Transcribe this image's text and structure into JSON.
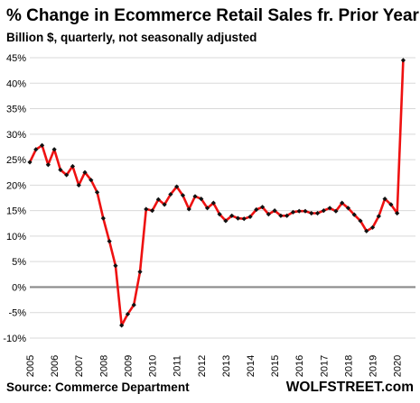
{
  "chart_data": {
    "type": "line",
    "title": "% Change in Ecommerce Retail Sales fr. Prior Year",
    "subtitle": "Billion $, quarterly, not seasonally adjusted",
    "source": "Source: Commerce Department",
    "brand": "WOLFSTREET.com",
    "ylim": [
      -10,
      45
    ],
    "y_ticks": [
      -10,
      -5,
      0,
      5,
      10,
      15,
      20,
      25,
      30,
      35,
      40,
      45
    ],
    "y_tick_labels": [
      "-10%",
      "-5%",
      "0%",
      "5%",
      "10%",
      "15%",
      "20%",
      "25%",
      "30%",
      "35%",
      "40%",
      "45%"
    ],
    "x_tick_labels": [
      "2005",
      "2006",
      "2007",
      "2008",
      "2009",
      "2010",
      "2011",
      "2012",
      "2013",
      "2014",
      "2015",
      "2016",
      "2017",
      "2018",
      "2019",
      "2020"
    ],
    "xlim": [
      2005.0,
      2020.75
    ],
    "grid": true,
    "zero_line": true,
    "line_color": "#ee1111",
    "marker_color": "#111111",
    "series": [
      {
        "x": [
          2005.0,
          2005.25,
          2005.5,
          2005.75,
          2006.0,
          2006.25,
          2006.5,
          2006.75,
          2007.0,
          2007.25,
          2007.5,
          2007.75,
          2008.0,
          2008.25,
          2008.5,
          2008.75,
          2009.0,
          2009.25,
          2009.5,
          2009.75,
          2010.0,
          2010.25,
          2010.5,
          2010.75,
          2011.0,
          2011.25,
          2011.5,
          2011.75,
          2012.0,
          2012.25,
          2012.5,
          2012.75,
          2013.0,
          2013.25,
          2013.5,
          2013.75,
          2014.0,
          2014.25,
          2014.5,
          2014.75,
          2015.0,
          2015.25,
          2015.5,
          2015.75,
          2016.0,
          2016.25,
          2016.5,
          2016.75,
          2017.0,
          2017.25,
          2017.5,
          2017.75,
          2018.0,
          2018.25,
          2018.5,
          2018.75,
          2019.0,
          2019.25,
          2019.5,
          2019.75,
          2020.0,
          2020.25
        ],
        "y": [
          24.5,
          27.0,
          27.8,
          24.0,
          27.0,
          23.0,
          22.0,
          23.7,
          20.0,
          22.5,
          21.0,
          18.6,
          13.5,
          9.0,
          4.2,
          -7.5,
          -5.3,
          -3.5,
          3.0,
          15.3,
          15.0,
          17.2,
          16.2,
          18.2,
          19.7,
          18.0,
          15.3,
          17.8,
          17.3,
          15.5,
          16.5,
          14.3,
          13.0,
          14.0,
          13.5,
          13.4,
          13.8,
          15.2,
          15.7,
          14.3,
          15.0,
          14.0,
          14.0,
          14.7,
          14.9,
          14.9,
          14.5,
          14.5,
          15.0,
          15.5,
          14.9,
          16.5,
          15.5,
          14.2,
          13.0,
          11.0,
          11.7,
          13.9,
          17.3,
          16.2,
          14.5,
          44.5
        ]
      }
    ]
  }
}
